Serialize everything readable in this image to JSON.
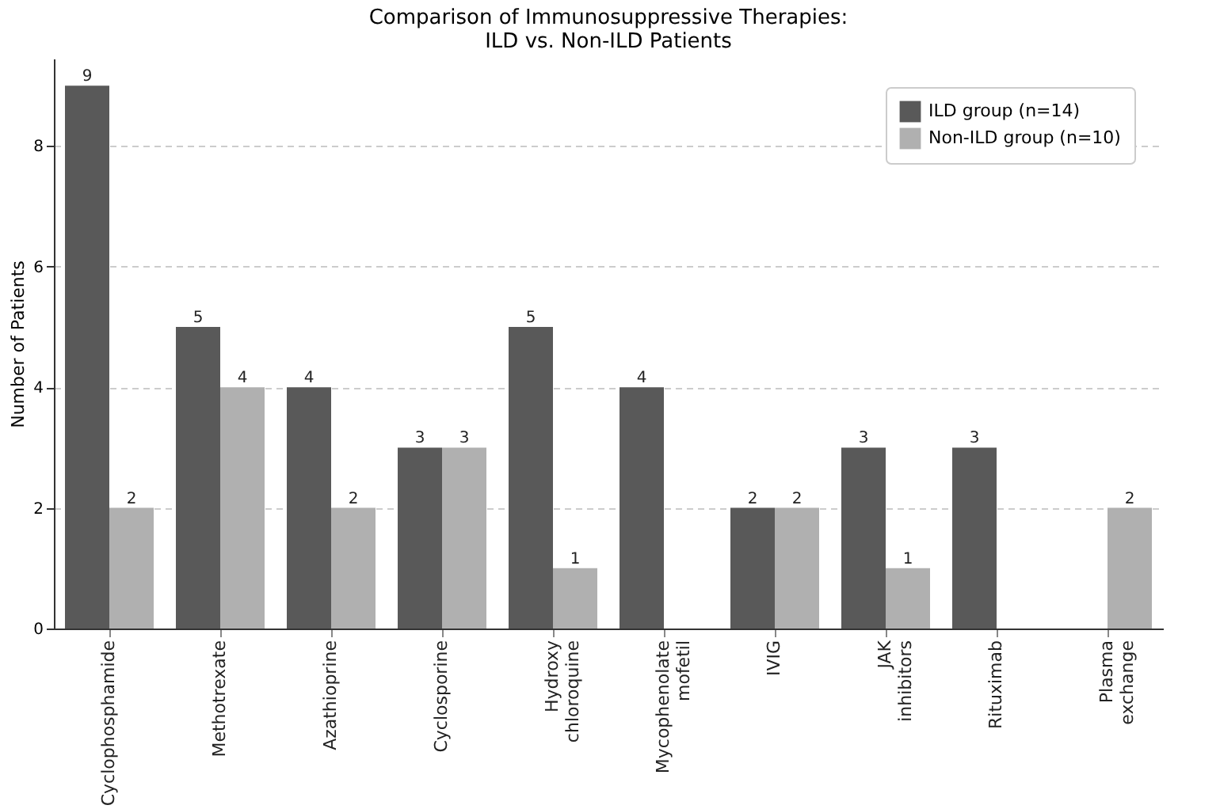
{
  "chart_data": {
    "type": "bar",
    "title": "Comparison of Immunosuppressive Therapies:\nILD vs. Non-ILD Patients",
    "ylabel": "Number of Patients",
    "categories": [
      "Cyclophosphamide",
      "Methotrexate",
      "Azathioprine",
      "Cyclosporine",
      "Hydroxy\nchloroquine",
      "Mycophenolate\nmofetil",
      "IVIG",
      "JAK\ninhibitors",
      "Rituximab",
      "Plasma\nexchange"
    ],
    "series": [
      {
        "name": "ILD group (n=14)",
        "color": "#595959",
        "values": [
          9,
          5,
          4,
          3,
          5,
          4,
          2,
          3,
          3,
          0
        ],
        "value_labels": [
          "9",
          "5",
          "4",
          "3",
          "5",
          "4",
          "2",
          "3",
          "3",
          null
        ]
      },
      {
        "name": "Non-ILD group (n=10)",
        "color": "#b0b0b0",
        "values": [
          2,
          4,
          2,
          3,
          1,
          0,
          2,
          1,
          0,
          2
        ],
        "value_labels": [
          "2",
          "4",
          "2",
          "3",
          "1",
          null,
          "2",
          "1",
          null,
          "2"
        ]
      }
    ],
    "ylim": [
      0,
      9.45
    ],
    "yticks": [
      0,
      2,
      4,
      6,
      8
    ],
    "grid": "y",
    "legend": "top right"
  }
}
